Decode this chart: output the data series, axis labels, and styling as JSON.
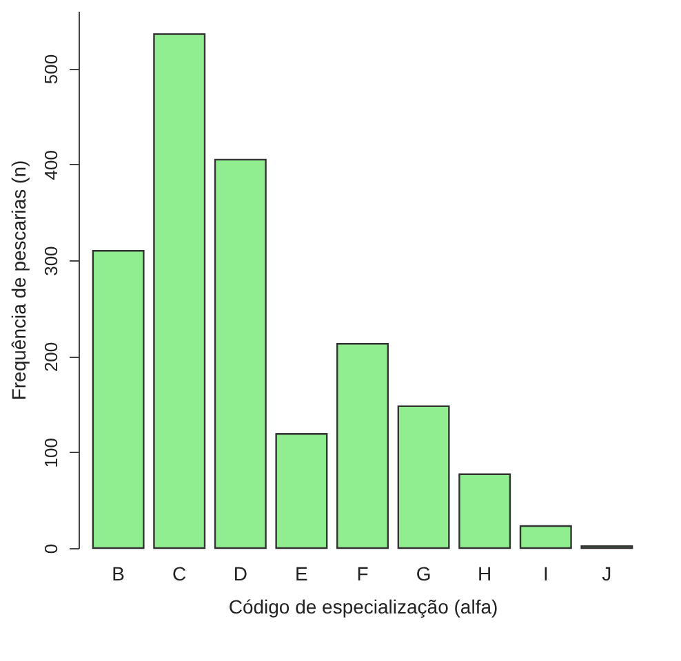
{
  "chart_data": {
    "type": "bar",
    "xlabel": "Código de especialização (alfa)",
    "ylabel": "Frequência de pescarias (n)",
    "categories": [
      "B",
      "C",
      "D",
      "E",
      "F",
      "G",
      "H",
      "I",
      "J"
    ],
    "values": [
      310,
      536,
      405,
      119,
      213,
      148,
      77,
      23,
      2
    ],
    "color": "#90ee90",
    "ylim": [
      0,
      560
    ],
    "yticks": [
      0,
      100,
      200,
      300,
      400,
      500
    ],
    "grid": false
  }
}
